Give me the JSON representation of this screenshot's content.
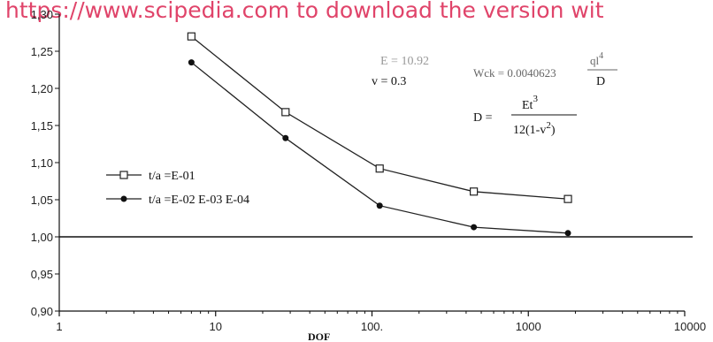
{
  "watermark": "https://www.scipedia.com to download the version wit",
  "chart_data": {
    "type": "line",
    "title": "",
    "xlabel": "DOF",
    "ylabel": "",
    "xscale": "log",
    "xlim": [
      1,
      10000
    ],
    "ylim": [
      0.9,
      1.3
    ],
    "x_ticks": [
      1,
      10,
      100,
      1000,
      10000
    ],
    "x_tick_labels": [
      "1",
      "10",
      "100.",
      "1000",
      "10000"
    ],
    "y_ticks": [
      0.9,
      0.95,
      1.0,
      1.05,
      1.1,
      1.15,
      1.2,
      1.25,
      1.3
    ],
    "y_tick_labels": [
      "0,90",
      "0,95",
      "1,00",
      "1,05",
      "1,10",
      "1,15",
      "1,20",
      "1,25",
      "1,30"
    ],
    "reference_line": 1.0,
    "grid": false,
    "legend_position": "left-middle",
    "series": [
      {
        "name": "t/a =E-01",
        "marker": "square",
        "color": "#222222",
        "x": [
          7,
          28,
          112,
          448,
          1792
        ],
        "y": [
          1.27,
          1.168,
          1.092,
          1.061,
          1.051
        ]
      },
      {
        "name": "t/a =E-02 E-03 E-04",
        "marker": "circle",
        "color": "#222222",
        "x": [
          7,
          28,
          112,
          448,
          1792
        ],
        "y": [
          1.235,
          1.133,
          1.042,
          1.013,
          1.005
        ]
      }
    ],
    "annotations": {
      "e_label": "E = 10.92",
      "nu_label": "v = 0.3",
      "wck_prefix": "Wck = 0.0040623",
      "wck_numerator": "ql",
      "wck_numerator_exp": "4",
      "wck_denominator": "D",
      "d_prefix": "D =",
      "d_numerator": "Et",
      "d_numerator_exp": "3",
      "d_denominator_base": "12(1-v",
      "d_denominator_exp": "2",
      "d_denominator_close": ")"
    }
  }
}
